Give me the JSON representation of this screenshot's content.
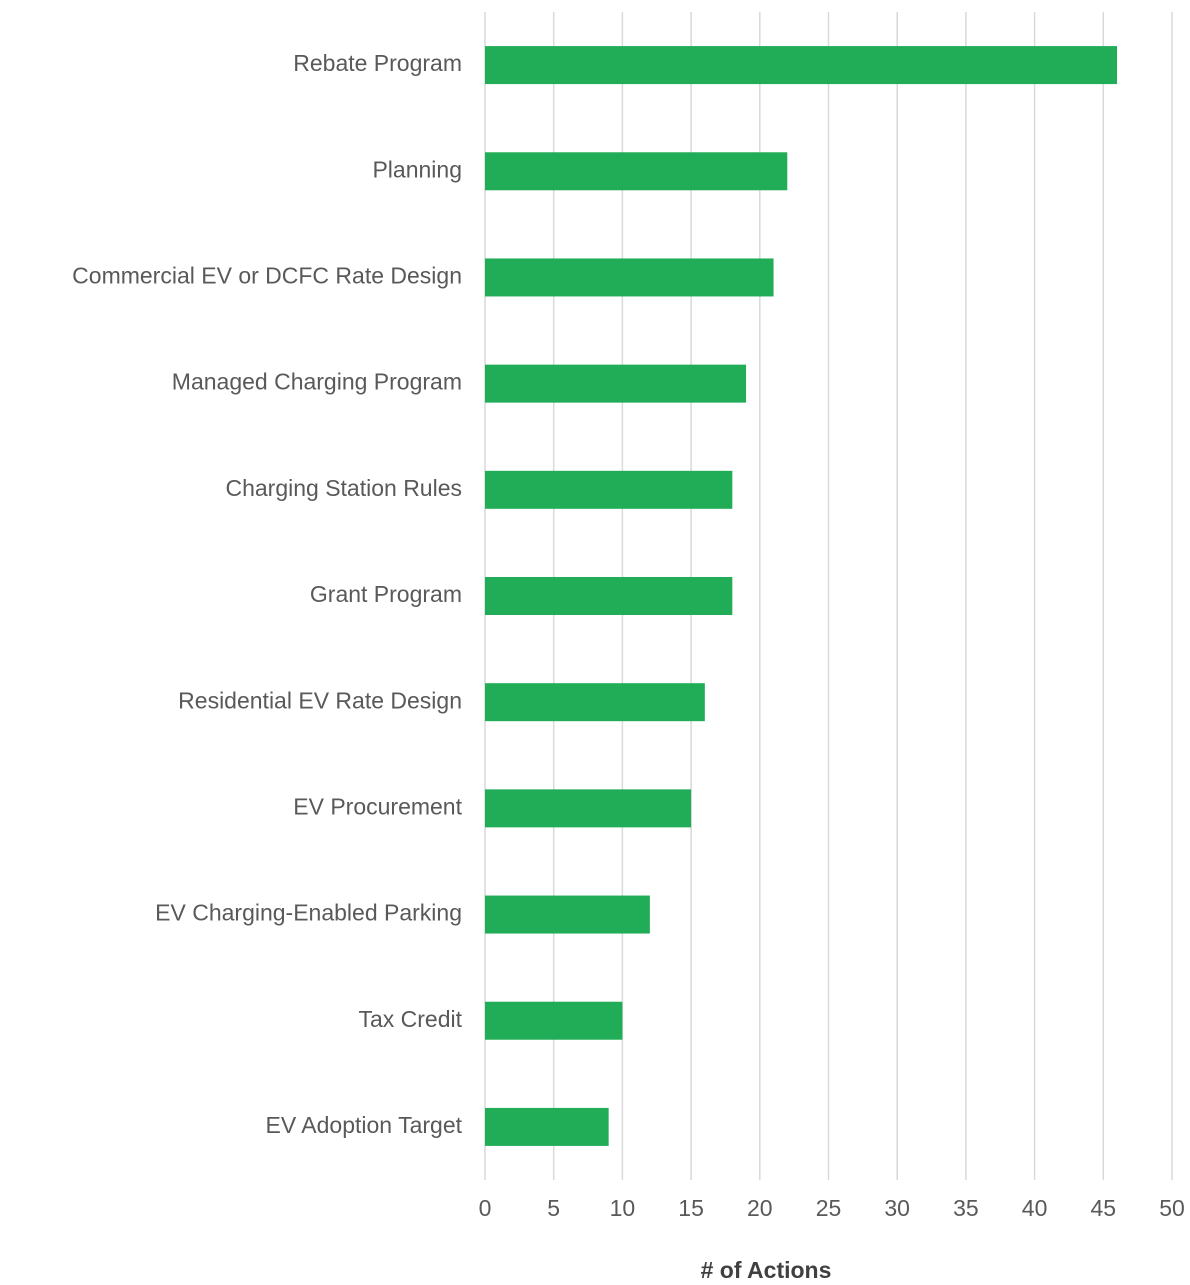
{
  "chart_data": {
    "type": "bar",
    "orientation": "horizontal",
    "xlabel": "# of Actions",
    "categories": [
      "Rebate Program",
      "Planning",
      "Commercial EV or DCFC Rate Design",
      "Managed Charging Program",
      "Charging Station Rules",
      "Grant Program",
      "Residential EV Rate Design",
      "EV Procurement",
      "EV Charging-Enabled Parking",
      "Tax Credit",
      "EV Adoption Target"
    ],
    "values": [
      46,
      22,
      21,
      19,
      18,
      18,
      16,
      15,
      12,
      10,
      9
    ],
    "color": "#21ad57",
    "xlim": [
      0,
      50
    ],
    "xticks": [
      0,
      5,
      10,
      15,
      20,
      25,
      30,
      35,
      40,
      45,
      50
    ],
    "grid": true
  }
}
